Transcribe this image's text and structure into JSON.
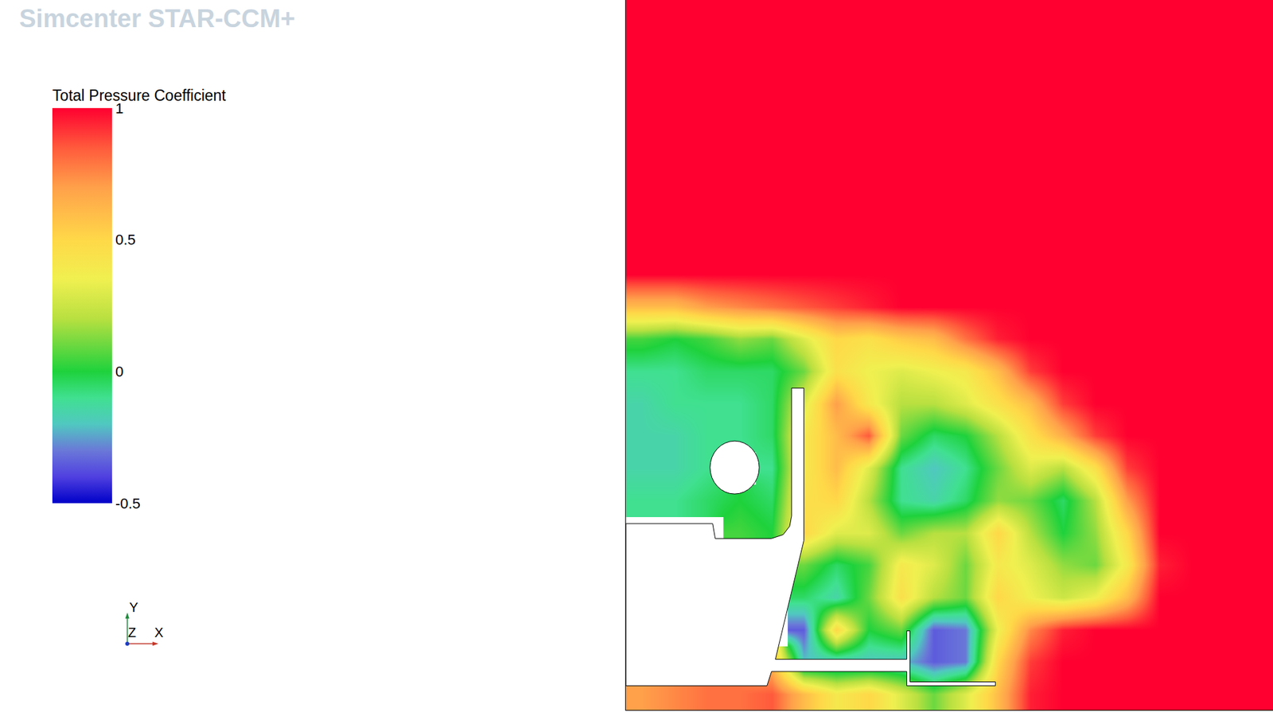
{
  "chart_data": {
    "type": "heatmap",
    "watermark": "Simcenter STAR-CCM+",
    "colorbar": {
      "title": "Total Pressure Coefficient",
      "range": [
        -0.5,
        1
      ],
      "ticks": [
        -0.5,
        0,
        0.5,
        1
      ]
    },
    "xlim": [
      0,
      100
    ],
    "ylim": [
      0,
      110
    ],
    "tick_labels": false,
    "grid": false,
    "axis_triad": [
      "X",
      "Y",
      "Z"
    ],
    "x": [
      2.5,
      7.5,
      12.5,
      17.5,
      22.5,
      27.5,
      32.5,
      37.5,
      42.5,
      47.5,
      52.5,
      57.5,
      62.5,
      67.5,
      72.5,
      77.5,
      82.5,
      87.5,
      92.5,
      97.5
    ],
    "y": [
      2.5,
      7.5,
      12.5,
      17.5,
      22.5,
      27.5,
      32.5,
      37.5,
      42.5,
      47.5,
      52.5,
      57.5,
      62.5,
      67.5,
      72.5,
      77.5,
      82.5,
      87.5,
      92.5,
      97.5,
      102.5,
      107.5
    ],
    "z": [
      [
        0.7,
        0.75,
        0.8,
        0.8,
        0.85,
        0.6,
        0.4,
        0.5,
        0.3,
        0.1,
        0.3,
        0.6,
        0.95,
        1,
        1,
        1,
        1,
        1,
        1,
        1
      ],
      [
        null,
        null,
        null,
        null,
        0.6,
        -0.2,
        -0.2,
        -0.2,
        -0.2,
        -0.35,
        -0.3,
        0.5,
        0.9,
        1,
        1,
        1,
        1,
        1,
        1,
        1
      ],
      [
        null,
        null,
        null,
        null,
        null,
        -0.35,
        0.5,
        0,
        0.1,
        -0.35,
        -0.3,
        0.35,
        0.75,
        0.95,
        1,
        1,
        1,
        1,
        1,
        1
      ],
      [
        null,
        null,
        null,
        null,
        null,
        -0.05,
        -0.15,
        0.1,
        0.45,
        0.2,
        0.1,
        0.5,
        0.35,
        0.25,
        0.35,
        0.6,
        1,
        1,
        1,
        1
      ],
      [
        null,
        null,
        null,
        null,
        null,
        0.1,
        -0.05,
        0.05,
        0.4,
        0.3,
        0.1,
        0.4,
        0.3,
        0.15,
        0.1,
        0.4,
        0.95,
        1,
        1,
        1
      ],
      [
        null,
        null,
        null,
        0.05,
        0,
        0.5,
        0.3,
        0.3,
        0.1,
        0.2,
        0.2,
        0.5,
        0.2,
        0,
        0.15,
        0.5,
        1,
        1,
        1,
        1
      ],
      [
        -0.1,
        -0.1,
        -0.05,
        0,
        -0.05,
        0.45,
        0.5,
        0.2,
        -0.1,
        -0.15,
        -0.05,
        0.15,
        0.1,
        -0.05,
        0.2,
        0.7,
        1,
        1,
        1,
        1
      ],
      [
        -0.15,
        -0.15,
        -0.1,
        null,
        -0.1,
        0.4,
        0.6,
        0.3,
        -0.1,
        -0.2,
        -0.1,
        0.1,
        0.3,
        0.2,
        0.45,
        0.9,
        1,
        1,
        1,
        1
      ],
      [
        -0.15,
        -0.15,
        -0.1,
        -0.1,
        -0.05,
        0.4,
        0.6,
        0.85,
        0.1,
        -0.05,
        0,
        0.2,
        0.45,
        0.65,
        0.9,
        1,
        1,
        1,
        1,
        1
      ],
      [
        -0.15,
        -0.1,
        -0.1,
        -0.1,
        -0.05,
        0.3,
        0.7,
        0.4,
        0.2,
        0.2,
        0.3,
        0.45,
        0.6,
        0.9,
        1,
        1,
        1,
        1,
        1,
        1
      ],
      [
        -0.1,
        -0.1,
        -0.05,
        -0.05,
        -0.05,
        0.1,
        0.45,
        0.35,
        0.3,
        0.35,
        0.4,
        0.6,
        0.9,
        1,
        1,
        1,
        1,
        1,
        1,
        1
      ],
      [
        0.05,
        0,
        0.05,
        0.15,
        0.1,
        0.3,
        0.5,
        0.45,
        0.55,
        0.6,
        0.8,
        0.95,
        1,
        1,
        1,
        1,
        1,
        1,
        1,
        1
      ],
      [
        0.6,
        0.6,
        0.7,
        0.75,
        0.8,
        0.85,
        0.9,
        0.95,
        1,
        1,
        1,
        1,
        1,
        1,
        1,
        1,
        1,
        1,
        1,
        1
      ],
      [
        1,
        1,
        1,
        1,
        1,
        1,
        1,
        1,
        1,
        1,
        1,
        1,
        1,
        1,
        1,
        1,
        1,
        1,
        1,
        1
      ],
      [
        1,
        1,
        1,
        1,
        1,
        1,
        1,
        1,
        1,
        1,
        1,
        1,
        1,
        1,
        1,
        1,
        1,
        1,
        1,
        1
      ],
      [
        1,
        1,
        1,
        1,
        1,
        1,
        1,
        1,
        1,
        1,
        1,
        1,
        1,
        1,
        1,
        1,
        1,
        1,
        1,
        1
      ],
      [
        1,
        1,
        1,
        1,
        1,
        1,
        1,
        1,
        1,
        1,
        1,
        1,
        1,
        1,
        1,
        1,
        1,
        1,
        1,
        1
      ],
      [
        1,
        1,
        1,
        1,
        1,
        1,
        1,
        1,
        1,
        1,
        1,
        1,
        1,
        1,
        1,
        1,
        1,
        1,
        1,
        1
      ],
      [
        1,
        1,
        1,
        1,
        1,
        1,
        1,
        1,
        1,
        1,
        1,
        1,
        1,
        1,
        1,
        1,
        1,
        1,
        1,
        1
      ],
      [
        1,
        1,
        1,
        1,
        1,
        1,
        1,
        1,
        1,
        1,
        1,
        1,
        1,
        1,
        1,
        1,
        1,
        1,
        1,
        1
      ],
      [
        1,
        1,
        1,
        1,
        1,
        1,
        1,
        1,
        1,
        1,
        1,
        1,
        1,
        1,
        1,
        1,
        1,
        1,
        1,
        1
      ],
      [
        1,
        1,
        1,
        1,
        1,
        1,
        1,
        1,
        1,
        1,
        1,
        1,
        1,
        1,
        1,
        1,
        1,
        1,
        1,
        1
      ]
    ]
  }
}
